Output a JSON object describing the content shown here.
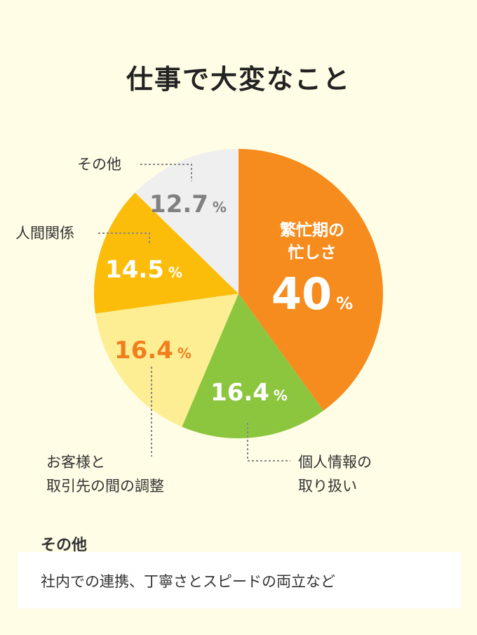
{
  "title": "仕事で大変なこと",
  "chart_data": {
    "type": "pie",
    "title": "仕事で大変なこと",
    "start": "12 o'clock, clockwise",
    "slices": [
      {
        "label_lines": [
          "繁忙期の",
          "忙しさ"
        ],
        "value": 40,
        "display": "40",
        "color": "#f68c1e",
        "value_color": "#ffffff",
        "label_inside": true
      },
      {
        "label_lines": [
          "個人情報の",
          "取り扱い"
        ],
        "value": 16.4,
        "display": "16.4",
        "color": "#8cc63f",
        "value_color": "#ffffff",
        "label_inside": false
      },
      {
        "label_lines": [
          "お客様と",
          "取引先の間の調整"
        ],
        "value": 16.4,
        "display": "16.4",
        "color": "#fdee93",
        "value_color": "#f07f1e",
        "label_inside": false
      },
      {
        "label_lines": [
          "人間関係"
        ],
        "value": 14.5,
        "display": "14.5",
        "color": "#fbbd0a",
        "value_color": "#ffffff",
        "label_inside": false
      },
      {
        "label_lines": [
          "その他"
        ],
        "value": 12.7,
        "display": "12.7",
        "color": "#efefef",
        "value_color": "#808080",
        "label_inside": false
      }
    ],
    "unit": "%"
  },
  "note": {
    "heading": "その他",
    "text": "社内での連携、丁寧さとスピードの両立など"
  }
}
